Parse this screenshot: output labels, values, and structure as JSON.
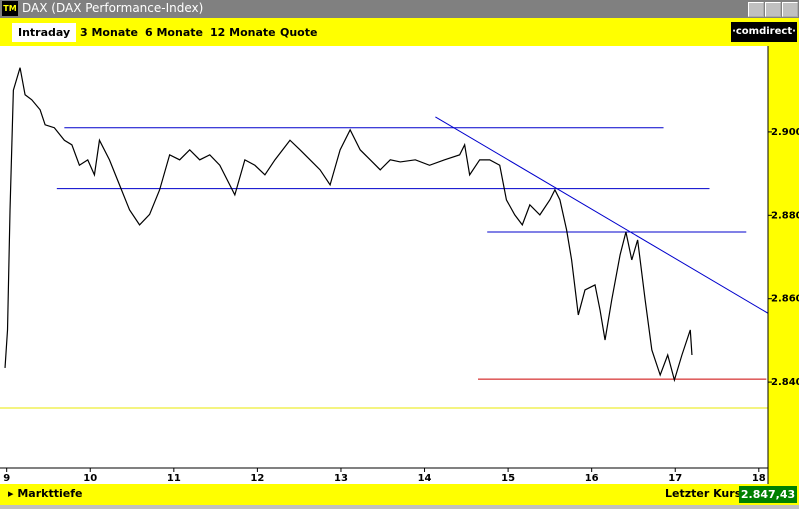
{
  "window": {
    "icon": "TM",
    "title": "DAX (DAX Performance-Index)"
  },
  "tabs": [
    "Intraday",
    "3 Monate",
    "6 Monate",
    "12 Monate",
    "Quote"
  ],
  "brand": "·comdirect·",
  "chart_data": {
    "type": "line",
    "x": [
      8.98,
      9.01,
      9.04,
      9.08,
      9.16,
      9.22,
      9.3,
      9.4,
      9.46,
      9.57,
      9.69,
      9.78,
      9.87,
      9.97,
      10.05,
      10.11,
      10.23,
      10.35,
      10.47,
      10.59,
      10.71,
      10.83,
      10.95,
      11.07,
      11.19,
      11.31,
      11.43,
      11.55,
      11.73,
      11.85,
      11.97,
      12.09,
      12.21,
      12.39,
      12.51,
      12.63,
      12.75,
      12.87,
      12.99,
      13.11,
      13.23,
      13.35,
      13.47,
      13.59,
      13.71,
      13.89,
      14.06,
      14.24,
      14.42,
      14.48,
      14.54,
      14.66,
      14.78,
      14.9,
      14.98,
      15.08,
      15.17,
      15.26,
      15.38,
      15.5,
      15.56,
      15.62,
      15.7,
      15.76,
      15.84,
      15.92,
      16.04,
      16.1,
      16.16,
      16.24,
      16.34,
      16.41,
      16.48,
      16.55,
      16.64,
      16.72,
      16.82,
      16.91,
      16.99,
      17.08,
      17.18,
      17.2
    ],
    "series": [
      {
        "color": "#000000",
        "values": [
          2843.4,
          2852.5,
          2881.3,
          2910,
          2915.4,
          2908.9,
          2907.7,
          2905.3,
          2901.7,
          2901,
          2898,
          2896.9,
          2892,
          2893.3,
          2889.7,
          2898,
          2893.3,
          2887.3,
          2881.3,
          2877.7,
          2880.2,
          2886.1,
          2894.5,
          2893.3,
          2895.7,
          2893.3,
          2894.5,
          2892,
          2884.9,
          2893.3,
          2892,
          2889.7,
          2893.3,
          2898,
          2895.7,
          2893.3,
          2890.9,
          2887.3,
          2895.7,
          2900.5,
          2895.7,
          2893.3,
          2890.9,
          2893.3,
          2892.8,
          2893.3,
          2892,
          2893.3,
          2894.5,
          2896.9,
          2889.7,
          2893.3,
          2893.3,
          2892,
          2883.7,
          2880.1,
          2877.7,
          2882.5,
          2880.1,
          2883.7,
          2886.1,
          2883.7,
          2876.5,
          2869.3,
          2856.1,
          2862.1,
          2863.3,
          2857.3,
          2850.1,
          2859.7,
          2870.5,
          2876,
          2869.3,
          2874.1,
          2859.7,
          2847.7,
          2841.7,
          2846.5,
          2840.5,
          2846.5,
          2852.5,
          2846.5
        ]
      }
    ],
    "lines": [
      {
        "color": "#0000cc",
        "x": [
          9.69,
          16.86
        ],
        "y": [
          2901,
          2901
        ]
      },
      {
        "color": "#0000cc",
        "x": [
          9.6,
          17.41
        ],
        "y": [
          2886.4,
          2886.4
        ]
      },
      {
        "color": "#0000cc",
        "x": [
          14.75,
          17.85
        ],
        "y": [
          2876,
          2876
        ]
      },
      {
        "color": "#0000cc",
        "x": [
          14.13,
          18.17
        ],
        "y": [
          2903.6,
          2855.8
        ]
      },
      {
        "color": "#cc0000",
        "x": [
          14.64,
          18.09
        ],
        "y": [
          2840.7,
          2840.7
        ]
      },
      {
        "color": "#e8e800",
        "x": [
          8.92,
          18.11
        ],
        "y": [
          2833.8,
          2833.8
        ]
      }
    ],
    "xlim": [
      8.92,
      18.11
    ],
    "ylim": [
      2819.4,
      2920.6
    ],
    "xticks": [
      9,
      10,
      11,
      12,
      13,
      14,
      15,
      16,
      17,
      18
    ],
    "yticks": [
      {
        "value": 2840,
        "label": "2.840"
      },
      {
        "value": 2860,
        "label": "2.860"
      },
      {
        "value": 2880,
        "label": "2.880"
      },
      {
        "value": 2900,
        "label": "2.900"
      }
    ]
  },
  "footer": {
    "left": "Markttiefe",
    "label": "Letzter Kurs",
    "price": "2.847,43"
  }
}
